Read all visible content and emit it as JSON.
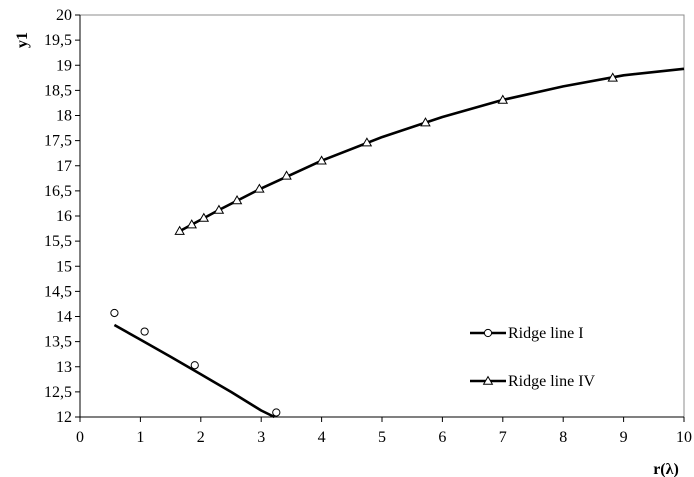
{
  "chart_data": {
    "type": "line",
    "title": "",
    "xlabel": "r(λ)",
    "ylabel": "y1",
    "xlim": [
      0,
      10
    ],
    "ylim": [
      12,
      20
    ],
    "x_ticks": [
      0,
      1,
      2,
      3,
      4,
      5,
      6,
      7,
      8,
      9,
      10
    ],
    "y_ticks": [
      12,
      12.5,
      13,
      13.5,
      14,
      14.5,
      15,
      15.5,
      16,
      16.5,
      17,
      17.5,
      18,
      18.5,
      19,
      19.5,
      20
    ],
    "x_tick_labels": [
      "0",
      "1",
      "2",
      "3",
      "4",
      "5",
      "6",
      "7",
      "8",
      "9",
      "10"
    ],
    "y_tick_labels": [
      "12",
      "12,5",
      "13",
      "13,5",
      "14",
      "14,5",
      "15",
      "15,5",
      "16",
      "16,5",
      "17",
      "17,5",
      "18",
      "18,5",
      "19",
      "19,5",
      "20"
    ],
    "grid": false,
    "legend_position": "right",
    "series": [
      {
        "name": "Ridge line I",
        "marker": "circle",
        "color": "#000000",
        "points": [
          {
            "x": 0.57,
            "y": 14.07
          },
          {
            "x": 1.07,
            "y": 13.7
          },
          {
            "x": 1.9,
            "y": 13.03
          },
          {
            "x": 3.25,
            "y": 12.09
          }
        ],
        "curve": [
          {
            "x": 0.57,
            "y": 13.83
          },
          {
            "x": 1.0,
            "y": 13.54
          },
          {
            "x": 1.5,
            "y": 13.2
          },
          {
            "x": 2.0,
            "y": 12.85
          },
          {
            "x": 2.5,
            "y": 12.5
          },
          {
            "x": 3.0,
            "y": 12.13
          },
          {
            "x": 3.22,
            "y": 12.0
          }
        ]
      },
      {
        "name": "Ridge line IV",
        "marker": "triangle",
        "color": "#000000",
        "points": [
          {
            "x": 1.65,
            "y": 15.7
          },
          {
            "x": 1.85,
            "y": 15.83
          },
          {
            "x": 2.05,
            "y": 15.96
          },
          {
            "x": 2.3,
            "y": 16.12
          },
          {
            "x": 2.6,
            "y": 16.31
          },
          {
            "x": 2.97,
            "y": 16.54
          },
          {
            "x": 3.42,
            "y": 16.8
          },
          {
            "x": 4.0,
            "y": 17.1
          },
          {
            "x": 4.75,
            "y": 17.46
          },
          {
            "x": 5.72,
            "y": 17.86
          },
          {
            "x": 7.0,
            "y": 18.31
          },
          {
            "x": 8.82,
            "y": 18.75
          }
        ],
        "curve": [
          {
            "x": 1.65,
            "y": 15.7
          },
          {
            "x": 2.3,
            "y": 16.12
          },
          {
            "x": 3.0,
            "y": 16.55
          },
          {
            "x": 4.0,
            "y": 17.1
          },
          {
            "x": 5.0,
            "y": 17.57
          },
          {
            "x": 6.0,
            "y": 17.97
          },
          {
            "x": 7.0,
            "y": 18.31
          },
          {
            "x": 8.0,
            "y": 18.58
          },
          {
            "x": 9.0,
            "y": 18.8
          },
          {
            "x": 10.0,
            "y": 18.93
          }
        ]
      }
    ]
  }
}
